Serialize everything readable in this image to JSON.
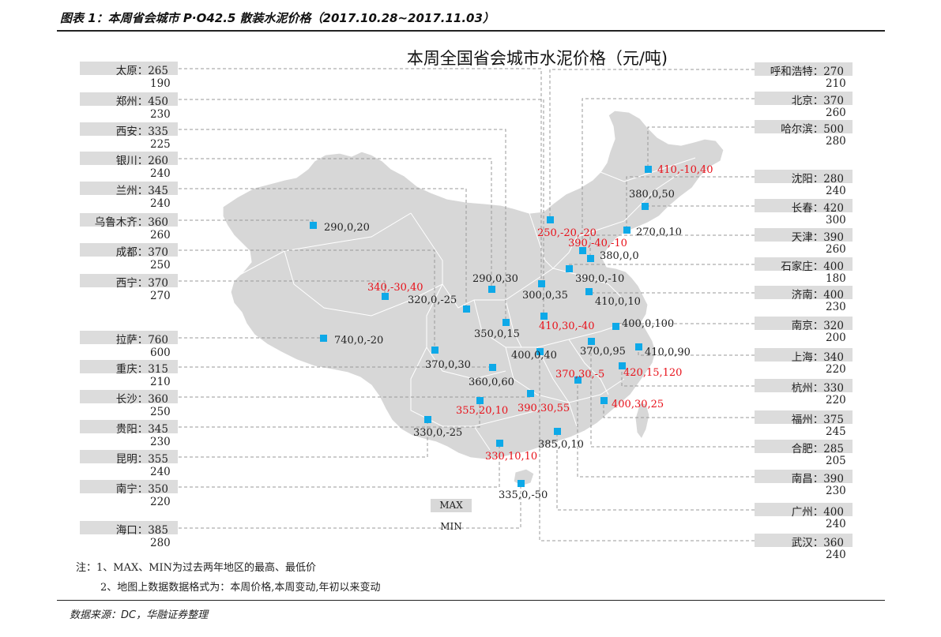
{
  "figure_title": "图表 1：本周省会城市 P·O42.5 散装水泥价格（2017.10.28~2017.11.03）",
  "source": "数据来源：DC，华融证券整理",
  "notes": [
    "注：1、MAX、MIN为过去两年地区的最高、最低价",
    "2、地图上数据数据格式为：本周价格,本周变动,年初以来变动"
  ],
  "legend": {
    "max": "MAX",
    "min": "MIN"
  },
  "colors": {
    "point": "#0ea9e8",
    "highlight_label": "#e8111a",
    "box": "#dcdcdc",
    "map_fill": "#d7d7d7"
  },
  "chart_data": {
    "type": "map",
    "title": "本周全国省会城市水泥价格（元/吨)",
    "left_cities": [
      {
        "name": "太原",
        "cur": "太原：265",
        "prev": "190"
      },
      {
        "name": "郑州",
        "cur": "郑州：450",
        "prev": "230"
      },
      {
        "name": "西安",
        "cur": "西安：335",
        "prev": "225"
      },
      {
        "name": "银川",
        "cur": "银川：260",
        "prev": "240"
      },
      {
        "name": "兰州",
        "cur": "兰州：345",
        "prev": "240"
      },
      {
        "name": "乌鲁木齐",
        "cur": "乌鲁木齐：360",
        "prev": "260"
      },
      {
        "name": "成都",
        "cur": "成都：370",
        "prev": "250"
      },
      {
        "name": "西宁",
        "cur": "西宁：370",
        "prev": "270"
      },
      {
        "name": "拉萨",
        "cur": "拉萨：760",
        "prev": "600"
      },
      {
        "name": "重庆",
        "cur": "重庆：315",
        "prev": "210"
      },
      {
        "name": "长沙",
        "cur": "长沙：360",
        "prev": "250"
      },
      {
        "name": "贵阳",
        "cur": "贵阳：345",
        "prev": "230"
      },
      {
        "name": "昆明",
        "cur": "昆明：355",
        "prev": "240"
      },
      {
        "name": "南宁",
        "cur": "南宁：350",
        "prev": "220"
      },
      {
        "name": "海口",
        "cur": "海口：385",
        "prev": "280"
      }
    ],
    "right_cities": [
      {
        "name": "呼和浩特",
        "cur": "呼和浩特：270",
        "prev": "210"
      },
      {
        "name": "北京",
        "cur": "北京：370",
        "prev": "260"
      },
      {
        "name": "哈尔滨",
        "cur": "哈尔滨：500",
        "prev": "280"
      },
      {
        "name": "沈阳",
        "cur": "沈阳：280",
        "prev": "240"
      },
      {
        "name": "长春",
        "cur": "长春：420",
        "prev": "300"
      },
      {
        "name": "天津",
        "cur": "天津：390",
        "prev": "260"
      },
      {
        "name": "石家庄",
        "cur": "石家庄：400",
        "prev": "180"
      },
      {
        "name": "济南",
        "cur": "济南：400",
        "prev": "230"
      },
      {
        "name": "南京",
        "cur": "南京：320",
        "prev": "200"
      },
      {
        "name": "上海",
        "cur": "上海：340",
        "prev": "220"
      },
      {
        "name": "杭州",
        "cur": "杭州：330",
        "prev": "220"
      },
      {
        "name": "福州",
        "cur": "福州：375",
        "prev": "245"
      },
      {
        "name": "合肥",
        "cur": "合肥：285",
        "prev": "205"
      },
      {
        "name": "南昌",
        "cur": "南昌：390",
        "prev": "230"
      },
      {
        "name": "广州",
        "cur": "广州：400",
        "prev": "240"
      },
      {
        "name": "武汉",
        "cur": "武汉：360",
        "prev": "240"
      }
    ],
    "points": [
      {
        "city": "哈尔滨",
        "label": "410,-10,40",
        "highlight": true
      },
      {
        "city": "长春",
        "label": "380,0,50",
        "highlight": false
      },
      {
        "city": "沈阳",
        "label": "270,0,10",
        "highlight": false
      },
      {
        "city": "呼和浩特",
        "label": "250,-20,-20",
        "highlight": true
      },
      {
        "city": "北京",
        "label": "390,-40,-10",
        "highlight": true
      },
      {
        "city": "天津",
        "label": "380,0,0",
        "highlight": false
      },
      {
        "city": "石家庄",
        "label": "390,0,-10",
        "highlight": false
      },
      {
        "city": "济南",
        "label": "410,0,10",
        "highlight": false
      },
      {
        "city": "太原",
        "label": "300,0,35",
        "highlight": false
      },
      {
        "city": "银川",
        "label": "290,0,30",
        "highlight": false
      },
      {
        "city": "兰州",
        "label": "320,0,-25",
        "highlight": false
      },
      {
        "city": "乌鲁木齐",
        "label": "290,0,20",
        "highlight": false
      },
      {
        "city": "西宁",
        "label": "340,-30,40",
        "highlight": true
      },
      {
        "city": "西安",
        "label": "350,0,15",
        "highlight": false
      },
      {
        "city": "郑州",
        "label": "410,30,-40",
        "highlight": true
      },
      {
        "city": "南京",
        "label": "400,0,100",
        "highlight": false
      },
      {
        "city": "合肥",
        "label": "370,0,95",
        "highlight": false
      },
      {
        "city": "上海",
        "label": "410,0,90",
        "highlight": false
      },
      {
        "city": "武汉",
        "label": "400,0,40",
        "highlight": false
      },
      {
        "city": "拉萨",
        "label": "740,0,-20",
        "highlight": false
      },
      {
        "city": "成都",
        "label": "370,0,30",
        "highlight": false
      },
      {
        "city": "重庆",
        "label": "360,0,60",
        "highlight": false
      },
      {
        "city": "南昌",
        "label": "370,30,-5",
        "highlight": true
      },
      {
        "city": "杭州",
        "label": "420,15,120",
        "highlight": true
      },
      {
        "city": "长沙",
        "label": "390,30,55",
        "highlight": true
      },
      {
        "city": "福州",
        "label": "400,30,25",
        "highlight": true
      },
      {
        "city": "贵阳",
        "label": "355,20,10",
        "highlight": true
      },
      {
        "city": "昆明",
        "label": "330,0,-25",
        "highlight": false
      },
      {
        "city": "广州",
        "label": "385,0,10",
        "highlight": false
      },
      {
        "city": "南宁",
        "label": "330,10,10",
        "highlight": true
      },
      {
        "city": "海口",
        "label": "335,0,-50",
        "highlight": false
      }
    ]
  }
}
